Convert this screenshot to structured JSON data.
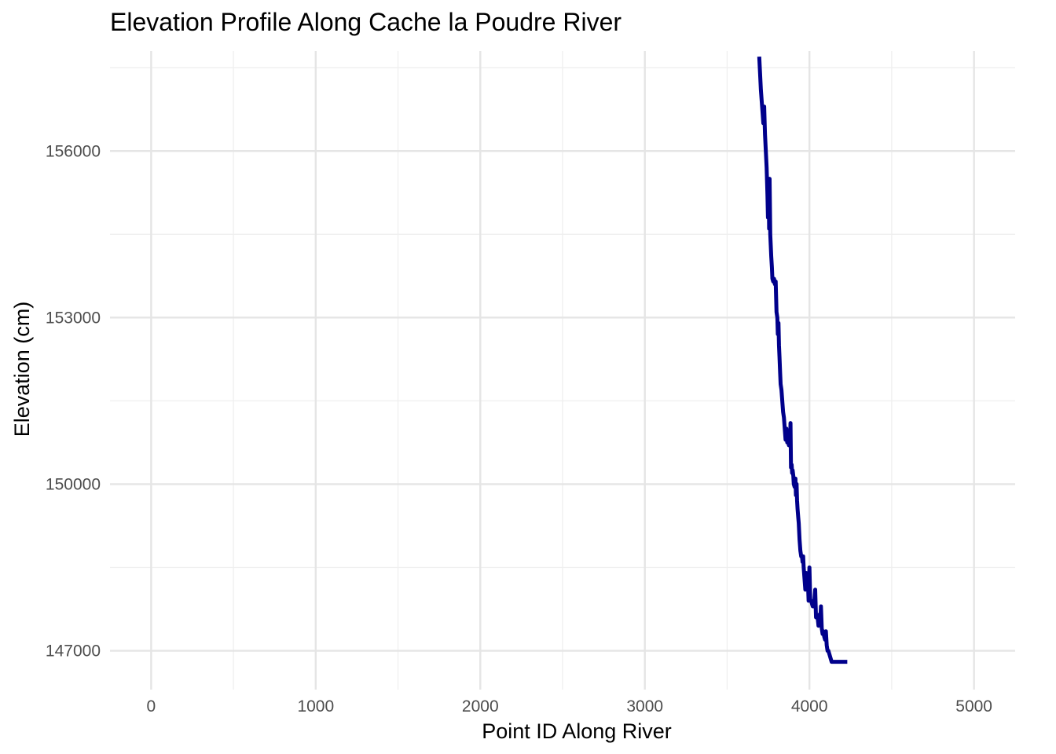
{
  "chart_data": {
    "type": "line",
    "title": "Elevation Profile Along Cache la Poudre River",
    "xlabel": "Point ID Along River",
    "ylabel": "Elevation (cm)",
    "xlim": [
      -250,
      5250
    ],
    "ylim": [
      146300,
      157800
    ],
    "x_ticks": [
      0,
      1000,
      2000,
      3000,
      4000,
      5000
    ],
    "y_ticks": [
      147000,
      150000,
      153000,
      156000
    ],
    "grid": true,
    "legend": "none",
    "line_color": "#00008b",
    "series": [
      {
        "x": [
          3695,
          3700,
          3705,
          3710,
          3715,
          3720,
          3725,
          3730,
          3735,
          3740,
          3745,
          3748,
          3752,
          3755,
          3758,
          3762,
          3765,
          3768,
          3772,
          3775,
          3780,
          3785,
          3790,
          3795,
          3800,
          3805,
          3808,
          3812,
          3815,
          3818,
          3822,
          3825,
          3830,
          3835,
          3840,
          3845,
          3850,
          3855,
          3860,
          3865,
          3870,
          3875,
          3878,
          3882,
          3885,
          3888,
          3892,
          3895,
          3898,
          3902,
          3905,
          3910,
          3915,
          3918,
          3922,
          3925,
          3928,
          3932,
          3935,
          3940,
          3945,
          3950,
          3955,
          3958,
          3962,
          3965,
          3970,
          3975,
          3980,
          3985,
          3990,
          3995,
          4000,
          4005,
          4010,
          4015,
          4020,
          4025,
          4030,
          4035,
          4040,
          4045,
          4050,
          4055,
          4060,
          4065,
          4070,
          4075,
          4080,
          4085,
          4090,
          4095,
          4100,
          4105,
          4110,
          4115,
          4120,
          4125,
          4130,
          4135,
          4140,
          4145,
          4150,
          4155,
          4160,
          4165,
          4170,
          4175,
          4180,
          4185,
          4190,
          4195,
          4200,
          4205,
          4210,
          4215,
          4220,
          4225,
          4230
        ],
        "y": [
          157700,
          157400,
          157100,
          156900,
          156700,
          156500,
          156800,
          156300,
          156000,
          155700,
          155200,
          154800,
          155500,
          154600,
          155500,
          154500,
          154300,
          154100,
          153900,
          153700,
          153650,
          153700,
          153600,
          153650,
          153100,
          153000,
          152700,
          152900,
          152500,
          152300,
          152000,
          151800,
          151700,
          151500,
          151300,
          151200,
          151000,
          150800,
          151000,
          150750,
          150850,
          150700,
          150900,
          150700,
          151100,
          150300,
          150350,
          150200,
          150250,
          150150,
          150000,
          149950,
          150100,
          149800,
          150000,
          149700,
          149550,
          149400,
          149300,
          149000,
          148800,
          148700,
          148700,
          148600,
          148700,
          148500,
          148300,
          148100,
          148400,
          148100,
          148300,
          147900,
          148500,
          147900,
          147900,
          147850,
          147800,
          147800,
          147900,
          148100,
          147600,
          147600,
          147600,
          147450,
          147650,
          147500,
          147800,
          147400,
          147300,
          147350,
          147250,
          147200,
          147350,
          147100,
          147000,
          147000,
          146950,
          146900,
          146850,
          146800,
          146800,
          146800,
          146800,
          146800,
          146800,
          146800,
          146800,
          146800,
          146800,
          146800,
          146800,
          146800,
          146800,
          146800,
          146800,
          146800,
          146800,
          146800,
          146800
        ]
      }
    ]
  }
}
